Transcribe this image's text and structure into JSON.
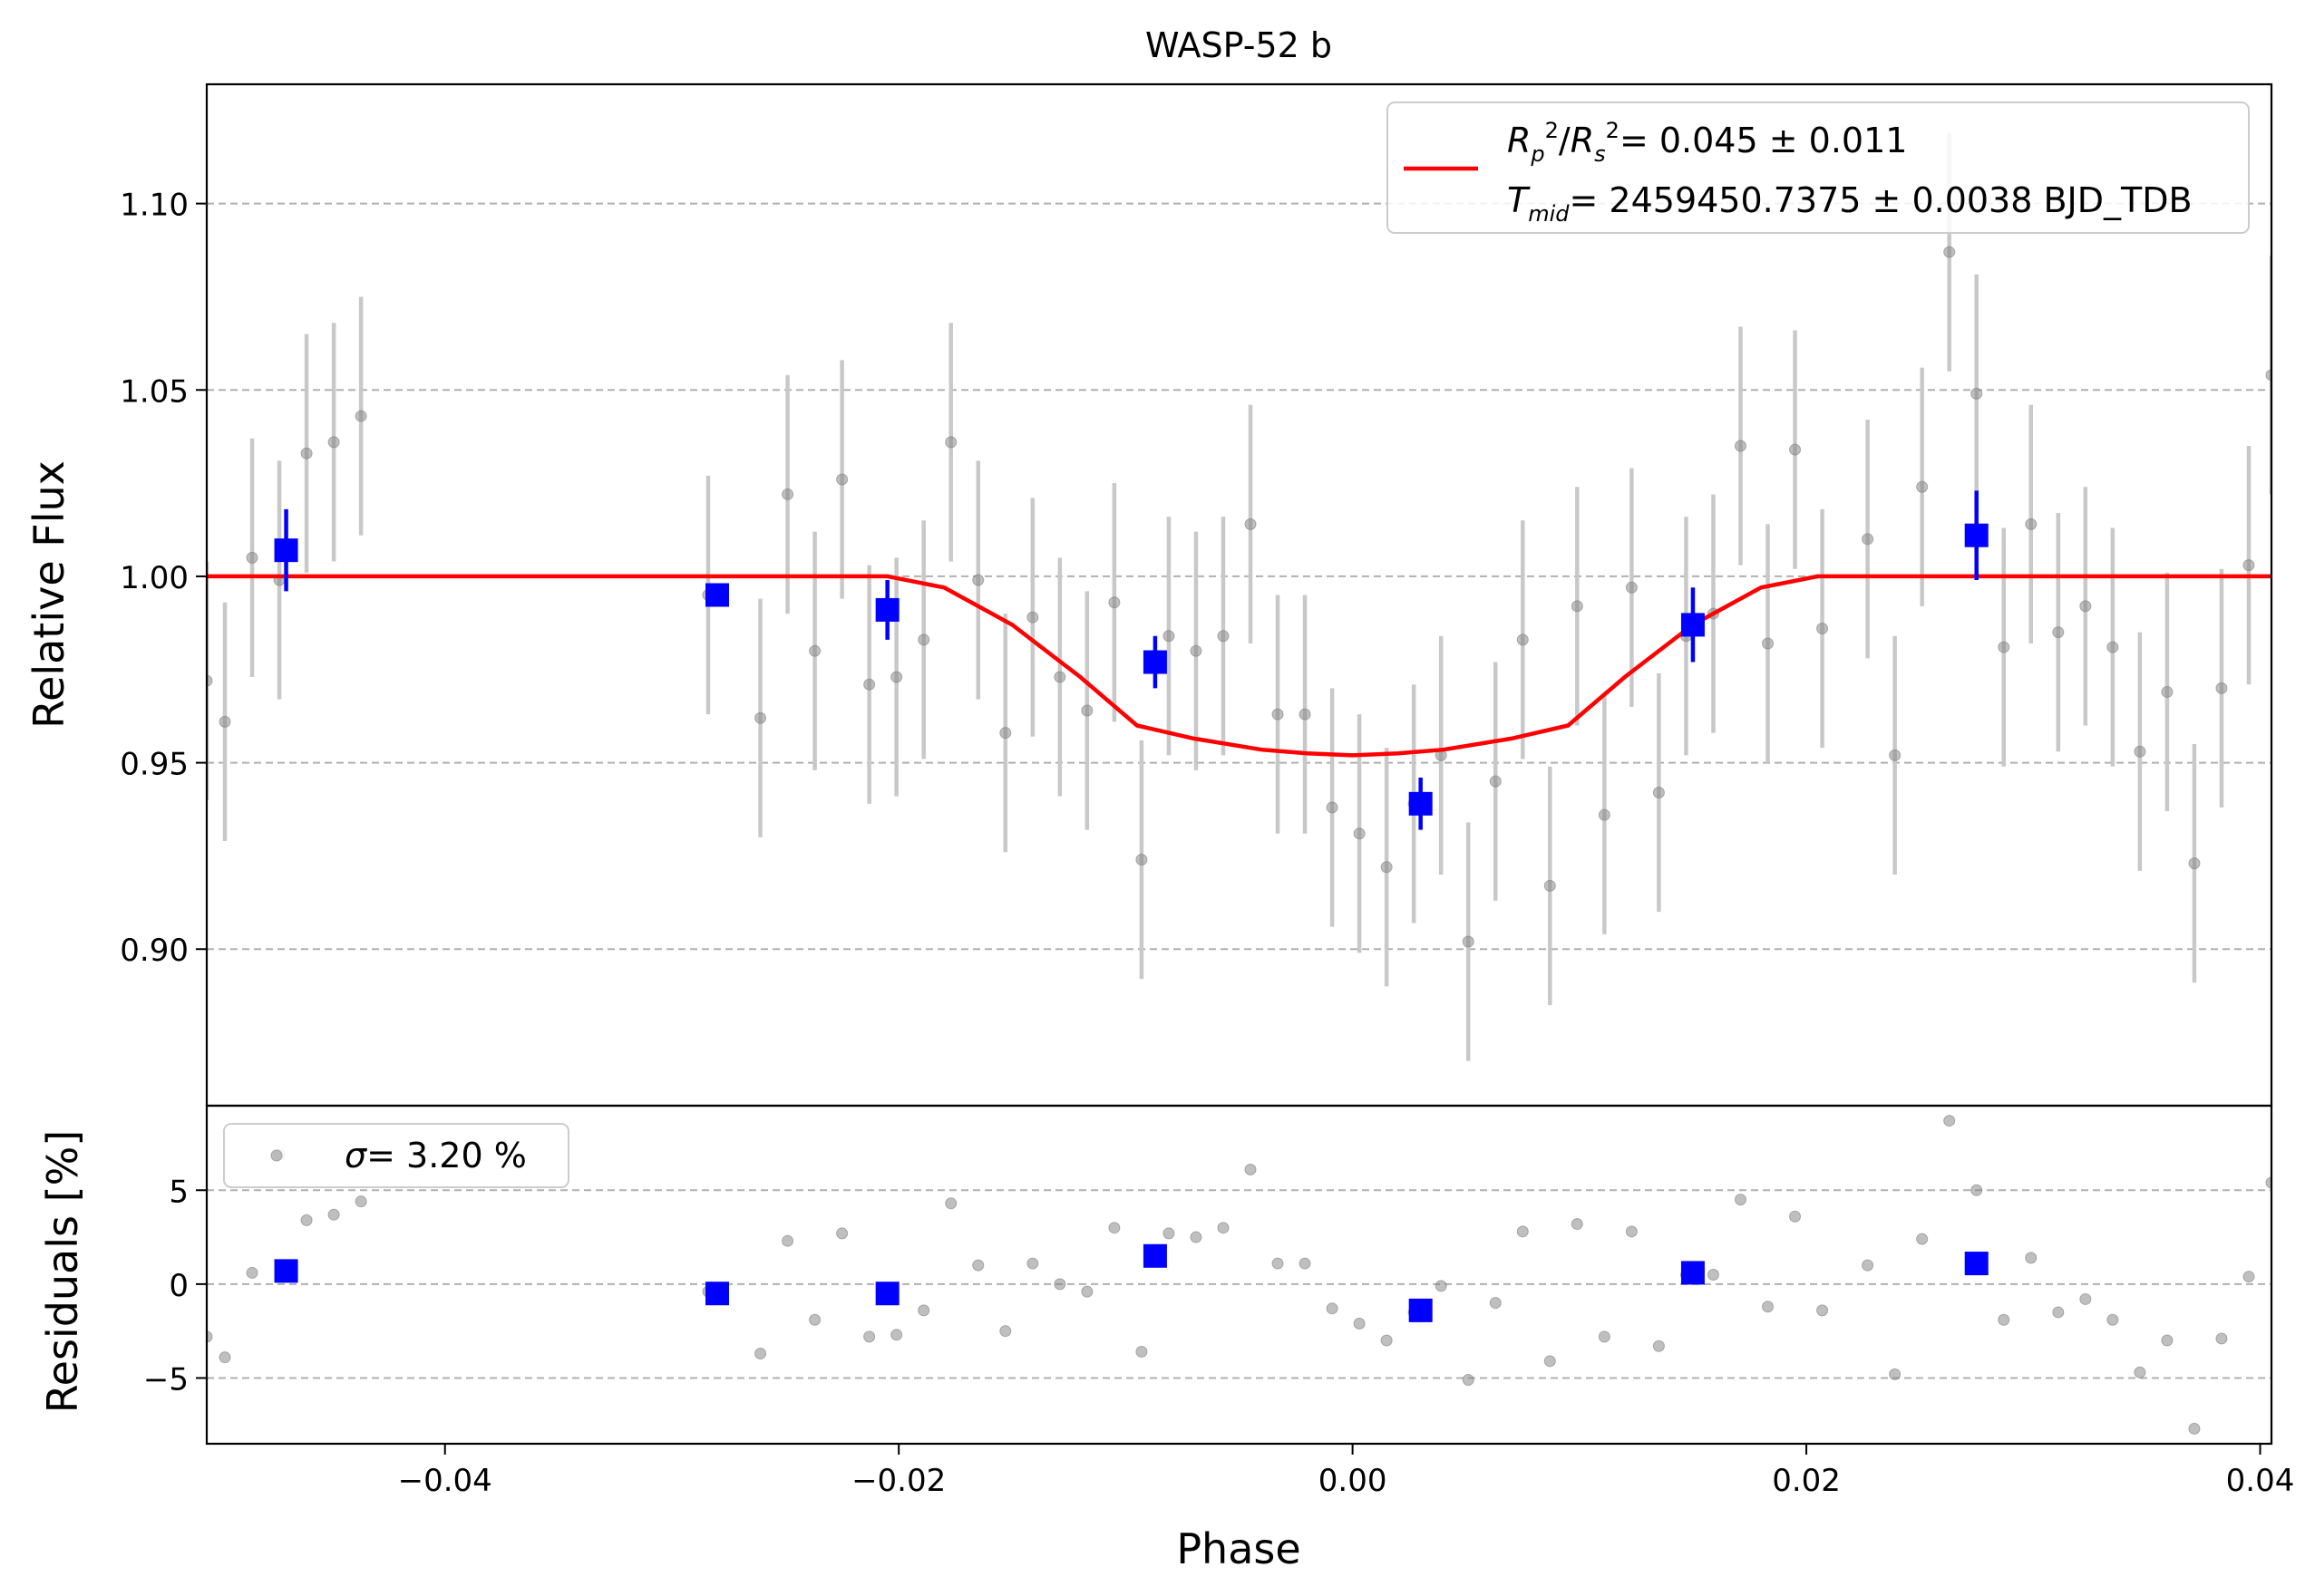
{
  "chart_data": [
    {
      "type": "scatter",
      "title": "WASP-52 b",
      "xlabel": "",
      "ylabel": "Relative Flux",
      "xlim": [
        -0.0505,
        0.0405
      ],
      "ylim": [
        0.858,
        1.132
      ],
      "yticks": [
        0.9,
        0.95,
        1.0,
        1.05,
        1.1
      ],
      "ytick_labels": [
        "0.90",
        "0.95",
        "1.00",
        "1.05",
        "1.10"
      ],
      "grid": "horizontal dashed",
      "legend_position": "top-right",
      "legend": {
        "line1": {
          "lhs": "R_p^2/R_s^2",
          "rhs": "= 0.045 ± 0.011"
        },
        "line2": {
          "lhs": "T_mid",
          "rhs": "= 2459450.7375 ± 0.0038 BJD_TDB"
        }
      },
      "colors": {
        "model": "#ff0000",
        "binned": "#0000ff",
        "points": "#808080",
        "errorbars": "#c8c8c8"
      },
      "series": [
        {
          "kind": "model",
          "x": [
            -0.0505,
            -0.0205,
            -0.018,
            -0.015,
            -0.012,
            -0.0095,
            -0.007,
            -0.004,
            -0.002,
            0.0,
            0.002,
            0.004,
            0.007,
            0.0095,
            0.012,
            0.015,
            0.018,
            0.0205,
            0.0405
          ],
          "values": [
            1.0,
            1.0,
            0.997,
            0.987,
            0.973,
            0.96,
            0.9565,
            0.9535,
            0.9525,
            0.952,
            0.9525,
            0.9535,
            0.9565,
            0.96,
            0.973,
            0.987,
            0.997,
            1.0,
            1.0
          ]
        },
        {
          "kind": "binned",
          "x": [
            -0.047,
            -0.028,
            -0.0205,
            -0.0087,
            0.003,
            0.015,
            0.0275
          ],
          "values": [
            1.007,
            0.995,
            0.991,
            0.977,
            0.939,
            0.987,
            1.011
          ],
          "err": [
            0.011,
            0.003,
            0.008,
            0.007,
            0.007,
            0.01,
            0.012
          ]
        },
        {
          "kind": "points",
          "x": [
            -0.0505,
            -0.0497,
            -0.0485,
            -0.0473,
            -0.0461,
            -0.0449,
            -0.0437,
            -0.0284,
            -0.0261,
            -0.0249,
            -0.0237,
            -0.0225,
            -0.0213,
            -0.0201,
            -0.0189,
            -0.0177,
            -0.0165,
            -0.0153,
            -0.0141,
            -0.0129,
            -0.0117,
            -0.0105,
            -0.0093,
            -0.0081,
            -0.0069,
            -0.0057,
            -0.0045,
            -0.0033,
            -0.0021,
            -0.0009,
            0.0003,
            0.0015,
            0.0027,
            0.0039,
            0.0051,
            0.0063,
            0.0075,
            0.0087,
            0.0099,
            0.0111,
            0.0123,
            0.0135,
            0.0147,
            0.0159,
            0.0171,
            0.0183,
            0.0195,
            0.0207,
            0.0227,
            0.0239,
            0.0251,
            0.0263,
            0.0275,
            0.0287,
            0.0299,
            0.0311,
            0.0323,
            0.0335,
            0.0347,
            0.0359,
            0.0371,
            0.0383,
            0.0395,
            0.0405
          ],
          "values": [
            0.972,
            0.961,
            1.005,
            0.999,
            1.033,
            1.036,
            1.043,
            0.995,
            0.962,
            1.022,
            0.98,
            1.026,
            0.971,
            0.973,
            0.983,
            1.036,
            0.999,
            0.958,
            0.989,
            0.973,
            0.964,
            0.993,
            0.924,
            0.984,
            0.98,
            0.984,
            1.014,
            0.963,
            0.963,
            0.938,
            0.931,
            0.922,
            0.939,
            0.952,
            0.902,
            0.945,
            0.983,
            0.917,
            0.992,
            0.936,
            0.997,
            0.942,
            0.984,
            0.99,
            1.035,
            0.982,
            1.034,
            0.986,
            1.01,
            0.952,
            1.024,
            1.087,
            1.049,
            0.981,
            1.014,
            0.985,
            0.992,
            0.981,
            0.953,
            0.969,
            0.923,
            0.97,
            1.003,
            1.054
          ],
          "err": 0.032
        }
      ]
    },
    {
      "type": "scatter",
      "title": "",
      "xlabel": "Phase",
      "ylabel": "Residuals [%]",
      "xlim": [
        -0.0505,
        0.0405
      ],
      "ylim": [
        -8.5,
        9.5
      ],
      "yticks": [
        -5,
        0,
        5
      ],
      "ytick_labels": [
        "−5",
        "0",
        "5"
      ],
      "xticks": [
        -0.04,
        -0.02,
        0.0,
        0.02,
        0.04
      ],
      "xtick_labels": [
        "−0.04",
        "−0.02",
        "0.00",
        "0.02",
        "0.04"
      ],
      "grid": "horizontal dashed",
      "legend_position": "top-left",
      "legend": {
        "sym": "σ",
        "rhs": "= 3.20 %"
      },
      "series": [
        {
          "kind": "points",
          "x": [
            -0.0505,
            -0.0497,
            -0.0485,
            -0.0473,
            -0.0461,
            -0.0449,
            -0.0437,
            -0.0284,
            -0.0261,
            -0.0249,
            -0.0237,
            -0.0225,
            -0.0213,
            -0.0201,
            -0.0189,
            -0.0177,
            -0.0165,
            -0.0153,
            -0.0141,
            -0.0129,
            -0.0117,
            -0.0105,
            -0.0093,
            -0.0081,
            -0.0069,
            -0.0057,
            -0.0045,
            -0.0033,
            -0.0021,
            -0.0009,
            0.0003,
            0.0015,
            0.0027,
            0.0039,
            0.0051,
            0.0063,
            0.0075,
            0.0087,
            0.0099,
            0.0111,
            0.0123,
            0.0135,
            0.0147,
            0.0159,
            0.0171,
            0.0183,
            0.0195,
            0.0207,
            0.0227,
            0.0239,
            0.0251,
            0.0263,
            0.0275,
            0.0287,
            0.0299,
            0.0311,
            0.0323,
            0.0335,
            0.0347,
            0.0359,
            0.0371,
            0.0383,
            0.0395,
            0.0405
          ],
          "values": [
            -2.8,
            -3.9,
            0.6,
            6.9,
            3.4,
            3.7,
            4.4,
            -0.4,
            -3.7,
            2.3,
            -1.9,
            2.7,
            -2.8,
            -2.7,
            -1.4,
            4.3,
            1.0,
            -2.5,
            1.1,
            0.0,
            -0.4,
            3.0,
            -3.6,
            2.7,
            2.5,
            3.0,
            6.1,
            1.1,
            1.1,
            -1.3,
            -2.1,
            -3.0,
            -1.5,
            -0.1,
            -5.1,
            -1.0,
            2.8,
            -4.1,
            3.2,
            -2.8,
            2.8,
            -3.3,
            0.5,
            0.5,
            4.5,
            -1.2,
            3.6,
            -1.4,
            1.0,
            -4.8,
            2.4,
            8.7,
            5.0,
            -1.9,
            1.4,
            -1.5,
            -0.8,
            -1.9,
            -4.7,
            -3.0,
            -7.7,
            -2.9,
            0.4,
            5.4
          ]
        },
        {
          "kind": "binned",
          "x": [
            -0.047,
            -0.028,
            -0.0205,
            -0.0087,
            0.003,
            0.015,
            0.0275
          ],
          "values": [
            0.7,
            -0.5,
            -0.5,
            1.5,
            -1.4,
            0.6,
            1.1
          ]
        }
      ]
    }
  ]
}
